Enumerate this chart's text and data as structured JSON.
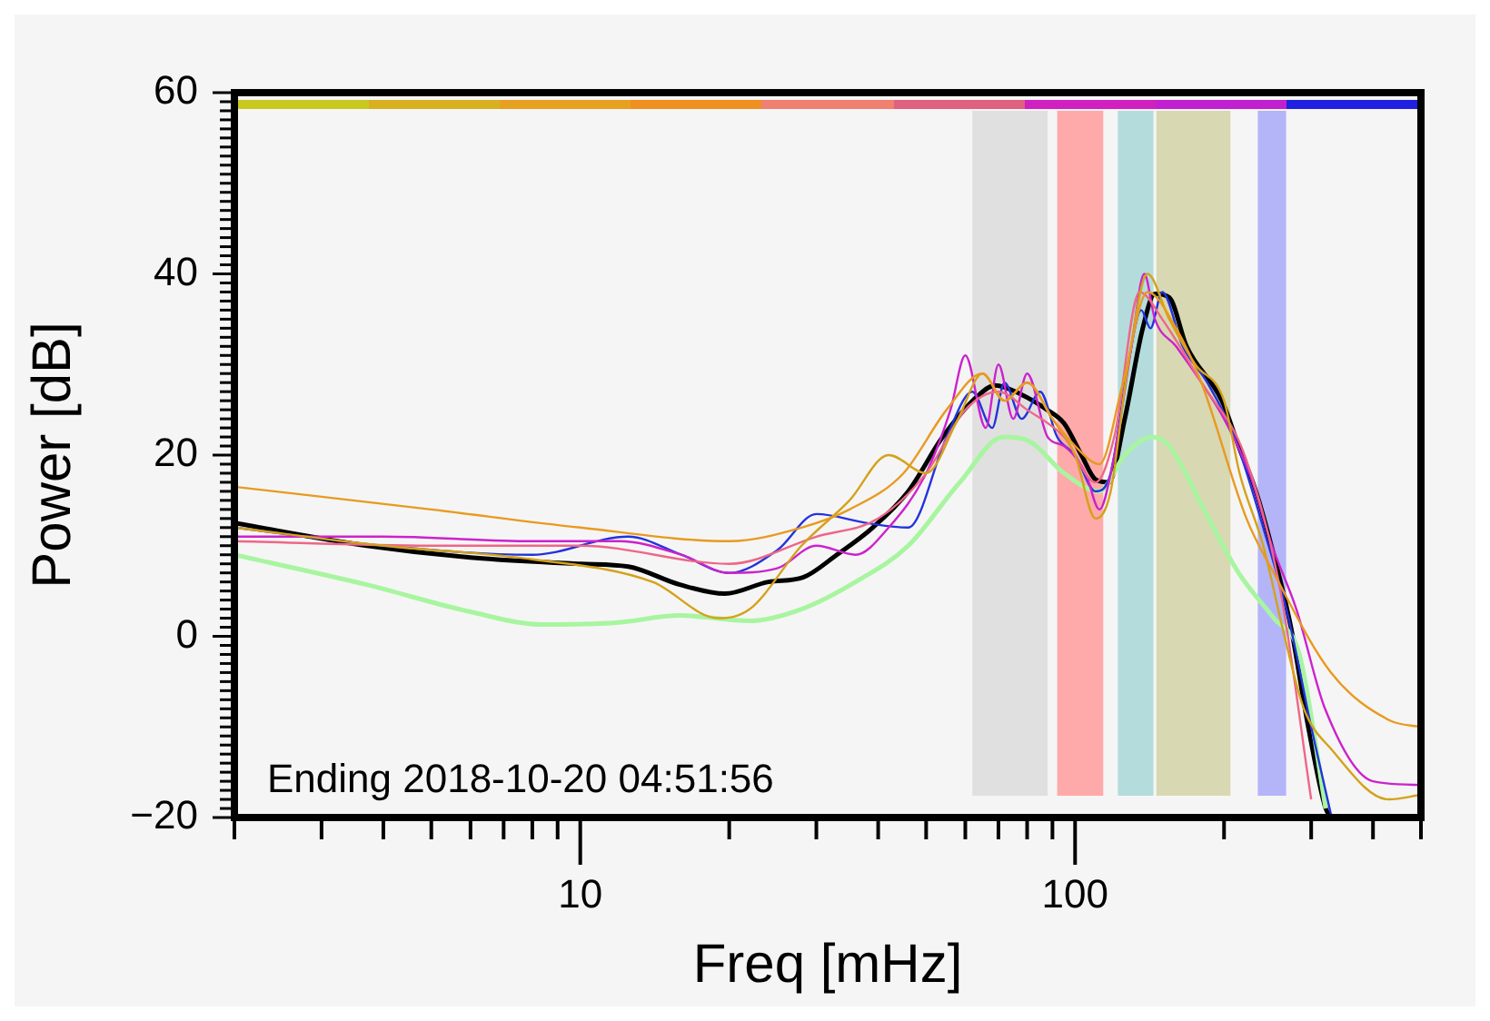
{
  "chart_data": {
    "type": "line",
    "xlabel": "Freq [mHz]",
    "ylabel": "Power [dB]",
    "annotations": [
      "Ending 2018-10-20 04:51:56"
    ],
    "log": "x",
    "grid": false,
    "legend": false,
    "marker": "none",
    "line_style": "solid",
    "xlim": [
      2,
      500
    ],
    "xticks": [
      {
        "value": 2,
        "label": null
      },
      {
        "value": 3,
        "label": null
      },
      {
        "value": 4,
        "label": null
      },
      {
        "value": 5,
        "label": null
      },
      {
        "value": 6,
        "label": null
      },
      {
        "value": 7,
        "label": null
      },
      {
        "value": 8,
        "label": null
      },
      {
        "value": 9,
        "label": null
      },
      10,
      {
        "value": 20,
        "label": null
      },
      {
        "value": 30,
        "label": null
      },
      {
        "value": 40,
        "label": null
      },
      {
        "value": 50,
        "label": null
      },
      {
        "value": 60,
        "label": null
      },
      {
        "value": 70,
        "label": null
      },
      {
        "value": 80,
        "label": null
      },
      {
        "value": 90,
        "label": null
      },
      100,
      {
        "value": 200,
        "label": null
      },
      {
        "value": 300,
        "label": null
      },
      {
        "value": 400,
        "label": null
      },
      {
        "value": 500,
        "label": null
      }
    ],
    "ylim": [
      -20,
      60
    ],
    "yticks": [
      {
        "value": -20,
        "label": "−20"
      },
      {
        "value": -19,
        "label": null
      },
      {
        "value": -18,
        "label": null
      },
      {
        "value": -17,
        "label": null
      },
      {
        "value": -16,
        "label": null
      },
      {
        "value": -15,
        "label": null
      },
      {
        "value": -14,
        "label": null
      },
      {
        "value": -13,
        "label": null
      },
      {
        "value": -12,
        "label": null
      },
      {
        "value": -11,
        "label": null
      },
      {
        "value": -10,
        "label": null
      },
      {
        "value": -9,
        "label": null
      },
      {
        "value": -8,
        "label": null
      },
      {
        "value": -7,
        "label": null
      },
      {
        "value": -6,
        "label": null
      },
      {
        "value": -5,
        "label": null
      },
      {
        "value": -4,
        "label": null
      },
      {
        "value": -3,
        "label": null
      },
      {
        "value": -2,
        "label": null
      },
      {
        "value": -1,
        "label": null
      },
      0,
      {
        "value": 1,
        "label": null
      },
      {
        "value": 2,
        "label": null
      },
      {
        "value": 3,
        "label": null
      },
      {
        "value": 4,
        "label": null
      },
      {
        "value": 5,
        "label": null
      },
      {
        "value": 6,
        "label": null
      },
      {
        "value": 7,
        "label": null
      },
      {
        "value": 8,
        "label": null
      },
      {
        "value": 9,
        "label": null
      },
      {
        "value": 10,
        "label": null
      },
      {
        "value": 11,
        "label": null
      },
      {
        "value": 12,
        "label": null
      },
      {
        "value": 13,
        "label": null
      },
      {
        "value": 14,
        "label": null
      },
      {
        "value": 15,
        "label": null
      },
      {
        "value": 16,
        "label": null
      },
      {
        "value": 17,
        "label": null
      },
      {
        "value": 18,
        "label": null
      },
      {
        "value": 19,
        "label": null
      },
      20,
      {
        "value": 21,
        "label": null
      },
      {
        "value": 22,
        "label": null
      },
      {
        "value": 23,
        "label": null
      },
      {
        "value": 24,
        "label": null
      },
      {
        "value": 25,
        "label": null
      },
      {
        "value": 26,
        "label": null
      },
      {
        "value": 27,
        "label": null
      },
      {
        "value": 28,
        "label": null
      },
      {
        "value": 29,
        "label": null
      },
      {
        "value": 30,
        "label": null
      },
      {
        "value": 31,
        "label": null
      },
      {
        "value": 32,
        "label": null
      },
      {
        "value": 33,
        "label": null
      },
      {
        "value": 34,
        "label": null
      },
      {
        "value": 35,
        "label": null
      },
      {
        "value": 36,
        "label": null
      },
      {
        "value": 37,
        "label": null
      },
      {
        "value": 38,
        "label": null
      },
      {
        "value": 39,
        "label": null
      },
      40,
      {
        "value": 41,
        "label": null
      },
      {
        "value": 42,
        "label": null
      },
      {
        "value": 43,
        "label": null
      },
      {
        "value": 44,
        "label": null
      },
      {
        "value": 45,
        "label": null
      },
      {
        "value": 46,
        "label": null
      },
      {
        "value": 47,
        "label": null
      },
      {
        "value": 48,
        "label": null
      },
      {
        "value": 49,
        "label": null
      },
      {
        "value": 50,
        "label": null
      },
      {
        "value": 51,
        "label": null
      },
      {
        "value": 52,
        "label": null
      },
      {
        "value": 53,
        "label": null
      },
      {
        "value": 54,
        "label": null
      },
      {
        "value": 55,
        "label": null
      },
      {
        "value": 56,
        "label": null
      },
      {
        "value": 57,
        "label": null
      },
      {
        "value": 58,
        "label": null
      },
      {
        "value": 59,
        "label": null
      },
      60
    ],
    "bands": [
      {
        "axis": "x",
        "from": 62,
        "to": 88,
        "color": "#e0e0e0"
      },
      {
        "axis": "x",
        "from": 92,
        "to": 114,
        "color": "#ffaaaa"
      },
      {
        "axis": "x",
        "from": 122,
        "to": 144,
        "color": "#b5dcdc"
      },
      {
        "axis": "x",
        "from": 146,
        "to": 206,
        "color": "#d8d8b2"
      },
      {
        "axis": "x",
        "from": 234,
        "to": 267,
        "color": "#b4b4f8"
      }
    ],
    "series": [
      {
        "color": "#e89a20",
        "x": [
          2,
          5,
          10,
          20,
          28,
          35,
          45,
          55,
          65,
          72,
          80,
          90,
          100,
          112,
          125,
          140,
          160,
          180,
          222,
          252,
          329,
          433,
          500
        ],
        "values": [
          16.5,
          14,
          12,
          10.5,
          12,
          14,
          18,
          25,
          29,
          26,
          28,
          24,
          21,
          19,
          28,
          38,
          34,
          28,
          13,
          7,
          -4,
          -9.3,
          -10
        ]
      },
      {
        "color": "#d4a21a",
        "x": [
          2,
          4,
          8,
          14,
          19,
          22,
          28,
          35,
          42,
          50,
          58,
          65,
          72,
          80,
          90,
          100,
          110,
          118,
          128,
          140,
          155,
          175,
          200,
          215,
          240,
          265,
          290,
          330,
          430,
          500
        ],
        "values": [
          12,
          10,
          8.5,
          6,
          2,
          3,
          10,
          15,
          20,
          18,
          24,
          29,
          26,
          28,
          24,
          20,
          13,
          16,
          30,
          40,
          35,
          30,
          26,
          18,
          10,
          0,
          -8,
          -12.5,
          -18,
          -17.5
        ]
      },
      {
        "color": "#ee6688",
        "x": [
          2,
          5,
          10,
          20,
          30,
          40,
          50,
          60,
          70,
          80,
          95,
          110,
          120,
          135,
          150,
          180,
          220,
          260,
          300
        ],
        "values": [
          10.5,
          10,
          10,
          8,
          11,
          13,
          18,
          25,
          27,
          25,
          22,
          17,
          22,
          38,
          35,
          28,
          20,
          5,
          -18
        ]
      },
      {
        "color": "#cc22cc",
        "x": [
          2,
          4,
          8,
          12,
          16,
          20,
          25,
          30,
          36,
          42,
          50,
          56,
          60,
          66,
          70,
          75,
          80,
          88,
          95,
          105,
          112,
          120,
          130,
          138,
          145,
          160,
          180,
          200,
          225,
          250,
          280,
          320,
          400,
          500
        ],
        "values": [
          11,
          11,
          10.5,
          10.5,
          9,
          7,
          7.5,
          10,
          9,
          12,
          18,
          25,
          31,
          23,
          30,
          24,
          29,
          22,
          21,
          18,
          14,
          20,
          32,
          40,
          35,
          32,
          28,
          24,
          18,
          10,
          3,
          -8,
          -16,
          -16.4
        ]
      },
      {
        "color": "#2233dd",
        "x": [
          2,
          4,
          8,
          12.5,
          16,
          20,
          25,
          30,
          38,
          46,
          55,
          62,
          68,
          72,
          78,
          85,
          92,
          100,
          110,
          118,
          128,
          136,
          142,
          150,
          165,
          185,
          210,
          240,
          270,
          300,
          330
        ],
        "values": [
          12,
          10,
          9,
          11,
          9,
          7,
          9.5,
          13.5,
          12.5,
          12,
          22,
          27,
          23,
          28,
          24,
          27,
          22,
          20,
          16,
          18,
          30,
          36,
          34,
          38,
          32,
          28,
          22,
          12,
          2,
          -10,
          -20
        ]
      },
      {
        "color": "#a8f5a0",
        "x": [
          2,
          3.7,
          6,
          8.4,
          11.8,
          15.9,
          22,
          28,
          36,
          46,
          58.5,
          71.7,
          81,
          95,
          112,
          126,
          143,
          155,
          182,
          214,
          252,
          284,
          321
        ],
        "values": [
          9,
          5.7,
          2.7,
          1.3,
          1.5,
          2.3,
          1.7,
          3,
          6,
          10,
          17,
          22,
          21.5,
          18,
          16,
          20,
          22,
          21,
          14,
          7,
          2,
          -2,
          -19
        ]
      },
      {
        "color": "#000000",
        "x": [
          2,
          3.7,
          6,
          10,
          12.5,
          15.9,
          19.6,
          24,
          28.2,
          33,
          39,
          46,
          54,
          63.5,
          68.9,
          77.8,
          87.8,
          95,
          103,
          110,
          117,
          126,
          137,
          145,
          155,
          168,
          198,
          214,
          232,
          252,
          273,
          296,
          321,
          330
        ],
        "values": [
          12.5,
          10,
          8.7,
          8,
          7.7,
          5.7,
          4.7,
          6,
          6.5,
          9,
          12,
          16,
          22,
          26.5,
          27.7,
          26.7,
          25,
          23.5,
          20,
          17.3,
          17,
          24,
          34,
          37.8,
          37.4,
          32,
          26,
          21,
          16,
          9,
          1,
          -10,
          -19,
          -20
        ]
      }
    ]
  }
}
